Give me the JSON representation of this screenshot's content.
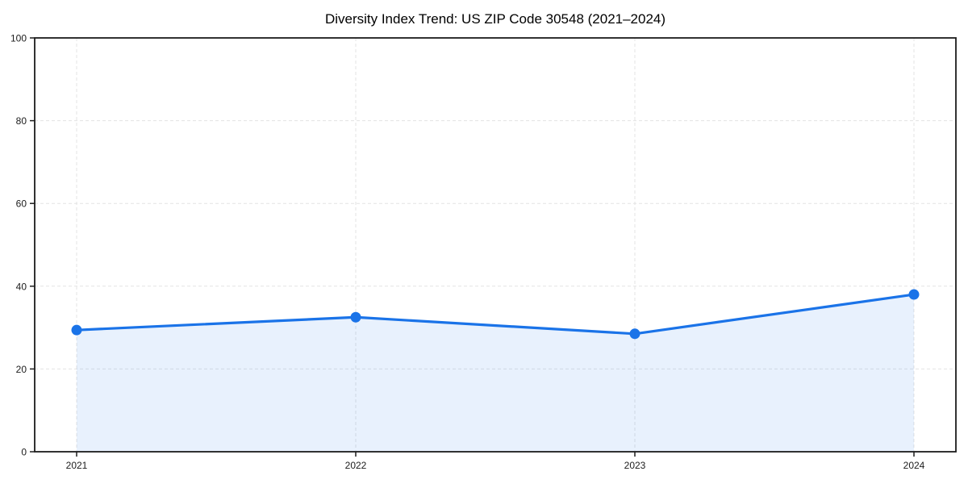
{
  "chart_data": {
    "type": "area",
    "title": "Diversity Index Trend: US ZIP Code 30548 (2021–2024)",
    "categories": [
      "2021",
      "2022",
      "2023",
      "2024"
    ],
    "series": [
      {
        "name": "Diversity Index",
        "values": [
          29.4,
          32.5,
          28.5,
          38.0
        ]
      }
    ],
    "xlabel": "",
    "ylabel": "",
    "ylim": [
      0,
      100
    ],
    "yticks": [
      0,
      20,
      40,
      60,
      80,
      100
    ],
    "grid": true,
    "grid_style": "dashed",
    "legend": "none",
    "colors": {
      "line": "#1a73e8",
      "marker": "#1a73e8",
      "fill": "rgba(26,115,232,0.10)",
      "grid": "#e3e3e3",
      "spine": "#1c1c1c",
      "tick_label": "#1c1c1c",
      "title": "#000000",
      "background": "#ffffff"
    }
  }
}
